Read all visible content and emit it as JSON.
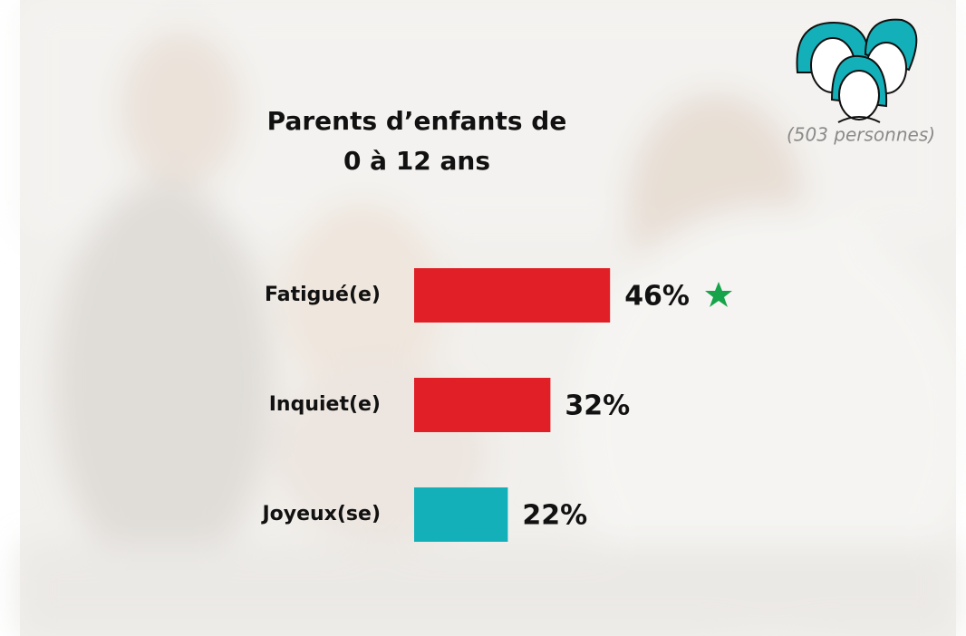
{
  "chart_data": {
    "type": "hbar",
    "title": "Parents d’enfants de 0 à 12 ans",
    "subtitle": "(503 personnes)",
    "categories": [
      "Fatigué(e)",
      "Inquiet(e)",
      "Joyeux(se)"
    ],
    "values": [
      46,
      32,
      22
    ],
    "value_labels": [
      "46%",
      "32%",
      "22%"
    ],
    "colors": [
      "#e01f26",
      "#e01f26",
      "#13b0ba"
    ]
  }
}
